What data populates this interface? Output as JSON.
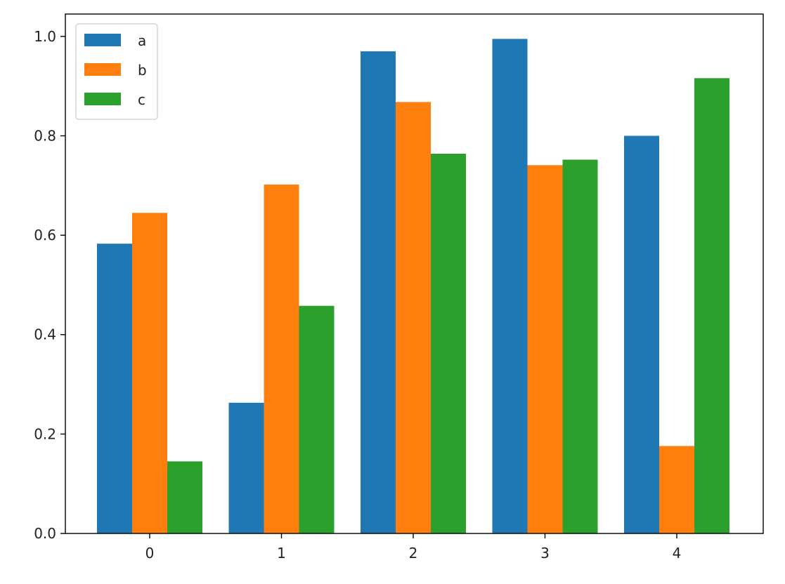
{
  "chart_data": {
    "type": "bar",
    "title": "",
    "xlabel": "",
    "ylabel": "",
    "categories": [
      "0",
      "1",
      "2",
      "3",
      "4"
    ],
    "series": [
      {
        "name": "a",
        "color": "#1f77b4",
        "values": [
          0.583,
          0.263,
          0.97,
          0.995,
          0.8
        ]
      },
      {
        "name": "b",
        "color": "#ff7f0e",
        "values": [
          0.645,
          0.702,
          0.868,
          0.741,
          0.176
        ]
      },
      {
        "name": "c",
        "color": "#2ca02c",
        "values": [
          0.145,
          0.458,
          0.764,
          0.752,
          0.916
        ]
      }
    ],
    "ylim": [
      0.0,
      1.045
    ],
    "yticks": [
      "0.0",
      "0.2",
      "0.4",
      "0.6",
      "0.8",
      "1.0"
    ],
    "grid": false,
    "legend": {
      "position": "top-left",
      "entries": [
        "a",
        "b",
        "c"
      ]
    }
  }
}
